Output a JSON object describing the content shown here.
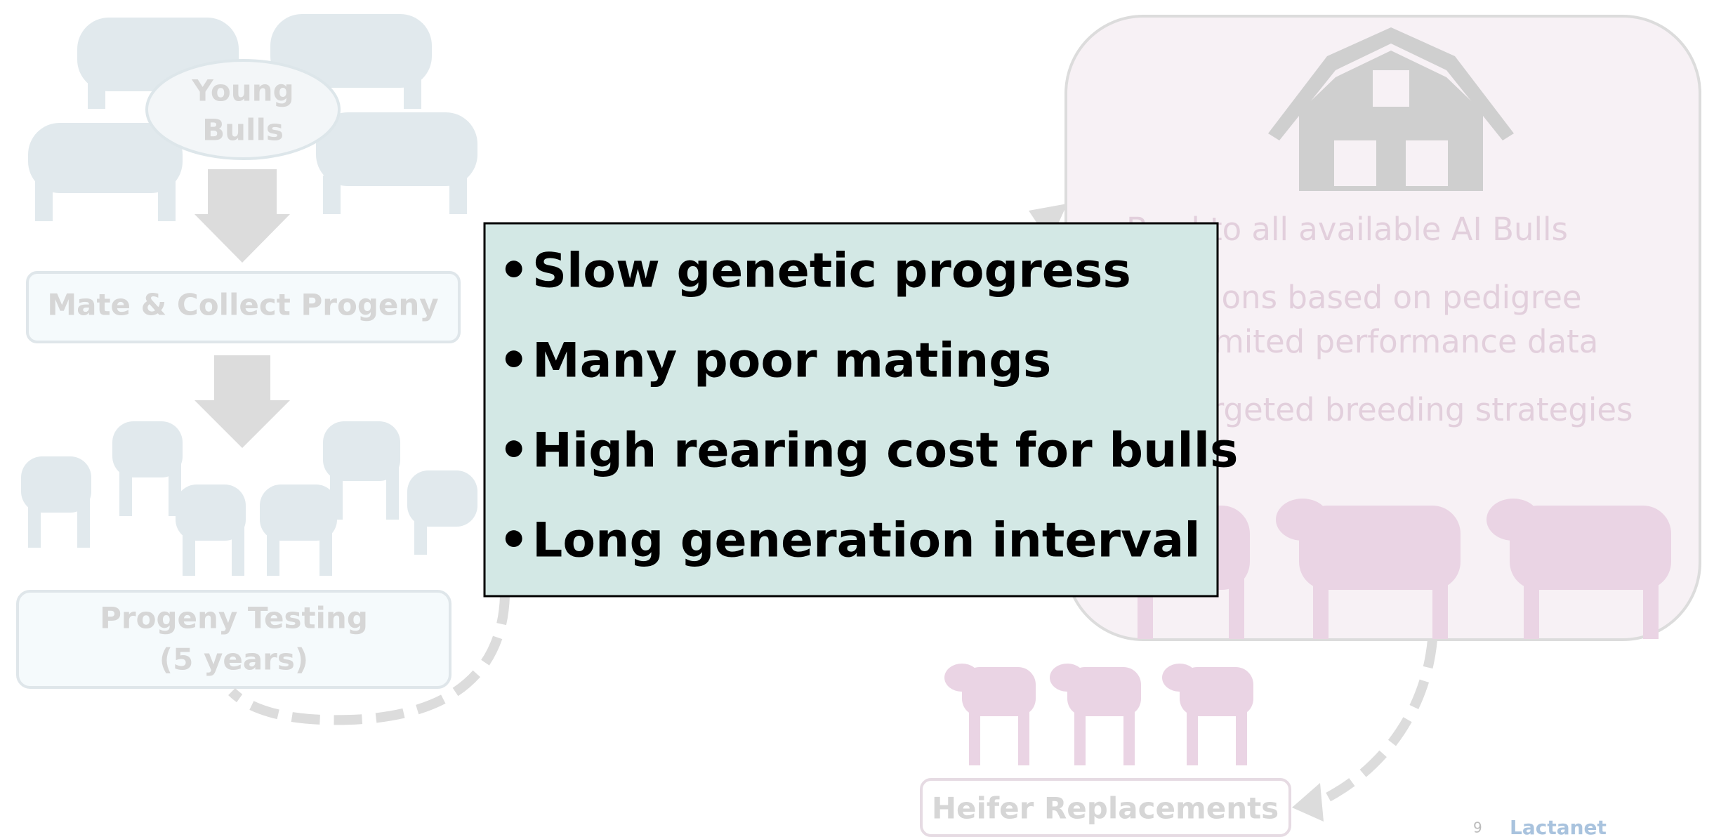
{
  "left_flow": {
    "start": [
      "Young",
      "Bulls"
    ],
    "step": "Mate & Collect Progeny",
    "testing": [
      "Progeny Testing",
      "(5 years)"
    ]
  },
  "callout": {
    "bullets": [
      "Slow genetic progress",
      "Many poor matings",
      "High rearing cost for bulls",
      "Long generation interval"
    ]
  },
  "right_panel": {
    "lines": [
      "Bred to all available AI Bulls",
      "Decisions based on pedigree",
      "and limited performance data",
      "No targeted breeding strategies"
    ]
  },
  "heifer": "Heifer Replacements",
  "footer": {
    "page": "9",
    "logo": "Lactanet"
  }
}
